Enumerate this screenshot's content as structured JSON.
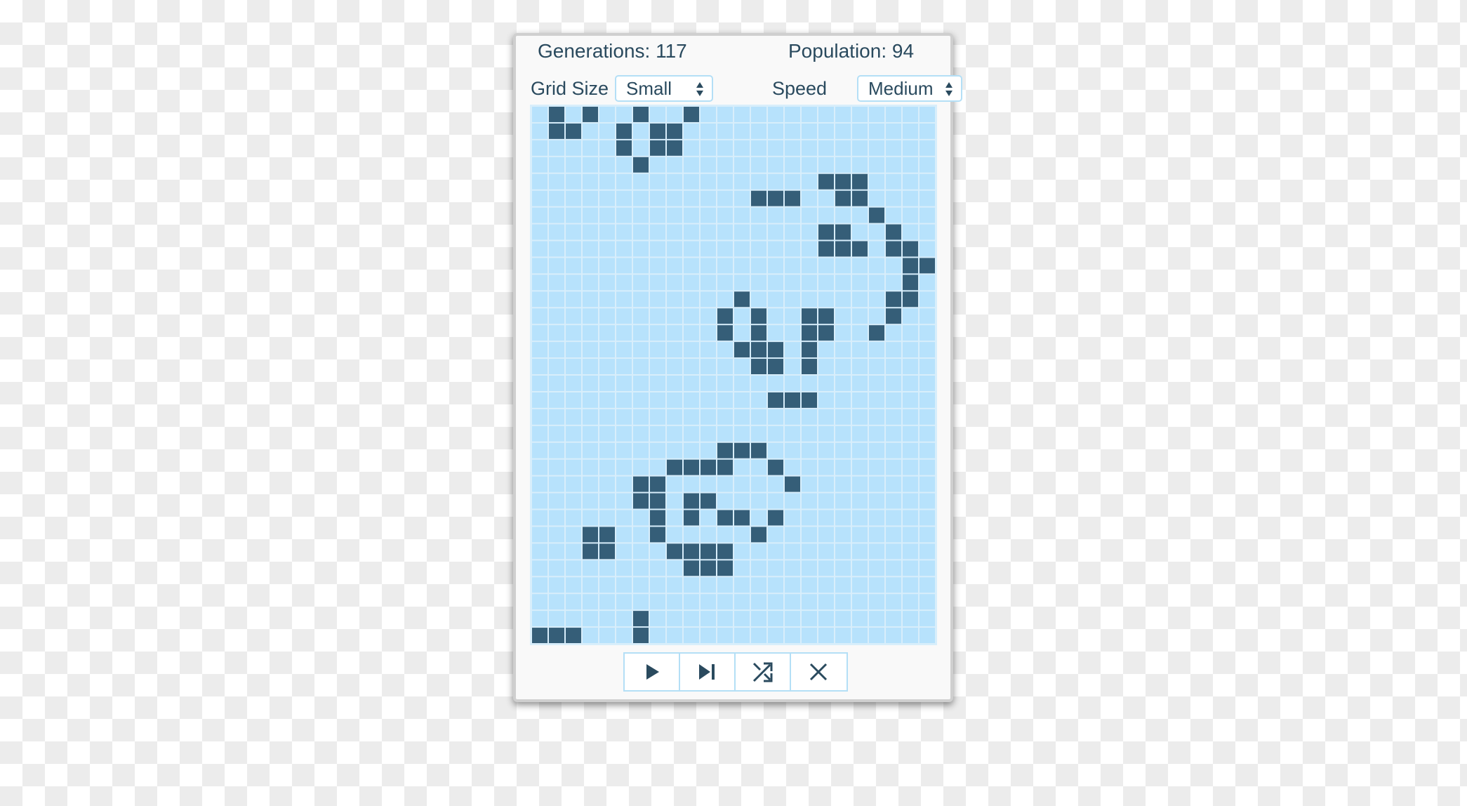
{
  "stats": {
    "generations_label": "Generations:",
    "generations": "117",
    "population_label": "Population:",
    "population": "94"
  },
  "controls": {
    "grid_size_label": "Grid Size",
    "grid_size_value": "Small",
    "speed_label": "Speed",
    "speed_value": "Medium"
  },
  "grid": {
    "cols": 24,
    "rows": 32,
    "live_color": "#355e78",
    "dead_color": "#b7e2fc",
    "line_color": "#d8eefb",
    "live_cells": [
      [
        0,
        1
      ],
      [
        0,
        3
      ],
      [
        0,
        6
      ],
      [
        0,
        9
      ],
      [
        1,
        1
      ],
      [
        1,
        2
      ],
      [
        1,
        5
      ],
      [
        1,
        7
      ],
      [
        1,
        8
      ],
      [
        2,
        5
      ],
      [
        2,
        7
      ],
      [
        2,
        8
      ],
      [
        3,
        6
      ],
      [
        4,
        17
      ],
      [
        4,
        18
      ],
      [
        4,
        19
      ],
      [
        5,
        13
      ],
      [
        5,
        14
      ],
      [
        5,
        15
      ],
      [
        5,
        18
      ],
      [
        5,
        19
      ],
      [
        6,
        20
      ],
      [
        7,
        17
      ],
      [
        7,
        18
      ],
      [
        7,
        21
      ],
      [
        8,
        17
      ],
      [
        8,
        18
      ],
      [
        8,
        19
      ],
      [
        8,
        21
      ],
      [
        8,
        22
      ],
      [
        9,
        22
      ],
      [
        9,
        23
      ],
      [
        10,
        22
      ],
      [
        11,
        12
      ],
      [
        11,
        21
      ],
      [
        11,
        22
      ],
      [
        12,
        11
      ],
      [
        12,
        13
      ],
      [
        12,
        16
      ],
      [
        12,
        17
      ],
      [
        12,
        21
      ],
      [
        13,
        11
      ],
      [
        13,
        13
      ],
      [
        13,
        16
      ],
      [
        13,
        17
      ],
      [
        13,
        20
      ],
      [
        14,
        12
      ],
      [
        14,
        13
      ],
      [
        14,
        14
      ],
      [
        14,
        16
      ],
      [
        15,
        13
      ],
      [
        15,
        14
      ],
      [
        15,
        16
      ],
      [
        17,
        14
      ],
      [
        17,
        15
      ],
      [
        17,
        16
      ],
      [
        20,
        11
      ],
      [
        20,
        12
      ],
      [
        20,
        13
      ],
      [
        21,
        8
      ],
      [
        21,
        9
      ],
      [
        21,
        10
      ],
      [
        21,
        11
      ],
      [
        21,
        14
      ],
      [
        22,
        6
      ],
      [
        22,
        7
      ],
      [
        22,
        15
      ],
      [
        23,
        6
      ],
      [
        23,
        7
      ],
      [
        23,
        9
      ],
      [
        23,
        10
      ],
      [
        24,
        7
      ],
      [
        24,
        9
      ],
      [
        24,
        11
      ],
      [
        24,
        12
      ],
      [
        24,
        14
      ],
      [
        25,
        3
      ],
      [
        25,
        4
      ],
      [
        25,
        7
      ],
      [
        25,
        13
      ],
      [
        26,
        3
      ],
      [
        26,
        4
      ],
      [
        26,
        8
      ],
      [
        26,
        9
      ],
      [
        26,
        10
      ],
      [
        26,
        11
      ],
      [
        27,
        9
      ],
      [
        27,
        10
      ],
      [
        27,
        11
      ],
      [
        30,
        6
      ],
      [
        31,
        0
      ],
      [
        31,
        1
      ],
      [
        31,
        2
      ],
      [
        31,
        6
      ]
    ]
  },
  "buttons": [
    {
      "name": "play-button",
      "icon": "play-icon"
    },
    {
      "name": "step-button",
      "icon": "step-forward-icon"
    },
    {
      "name": "randomize-button",
      "icon": "shuffle-icon"
    },
    {
      "name": "clear-button",
      "icon": "close-icon"
    }
  ]
}
